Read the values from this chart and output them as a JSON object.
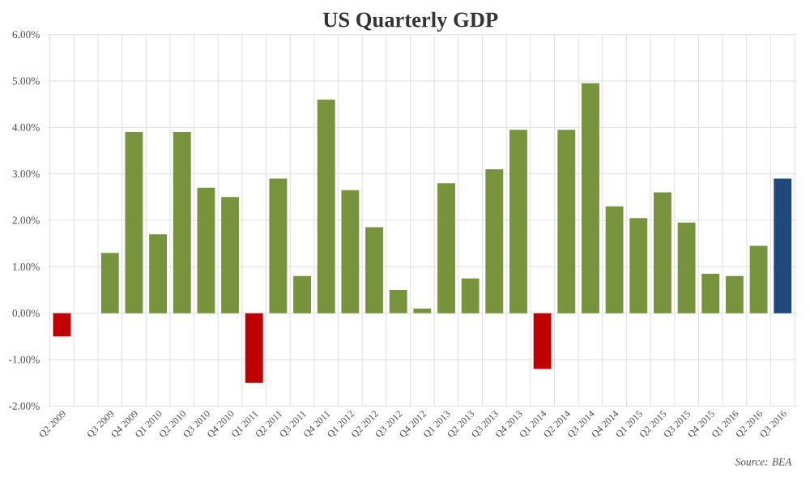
{
  "chart_data": {
    "type": "bar",
    "title": "US Quarterly GDP",
    "categories": [
      "Q2 2009",
      null,
      "Q3 2009",
      "Q4 2009",
      "Q1 2010",
      "Q2 2010",
      "Q3 2010",
      "Q4 2010",
      "Q1 2011",
      "Q2 2011",
      "Q3 2011",
      "Q4 2011",
      "Q1 2012",
      "Q2 2012",
      "Q3 2012",
      "Q4 2012",
      "Q1 2013",
      "Q2 2013",
      "Q3 2013",
      "Q4 2013",
      "Q1 2014",
      "Q2 2014",
      "Q3 2014",
      "Q4 2014",
      "Q1 2015",
      "Q2 2015",
      "Q3 2015",
      "Q4 2015",
      "Q1 2016",
      "Q2 2016",
      "Q3 2016"
    ],
    "values": [
      -0.5,
      null,
      1.3,
      3.9,
      1.7,
      3.9,
      2.7,
      2.5,
      -1.5,
      2.9,
      0.8,
      4.6,
      2.65,
      1.85,
      0.5,
      0.1,
      2.8,
      0.75,
      3.1,
      3.95,
      -1.2,
      3.95,
      4.95,
      2.3,
      2.05,
      2.6,
      1.95,
      0.85,
      0.8,
      1.45,
      2.9
    ],
    "colors": [
      "#c00000",
      "#77933c",
      "#77933c",
      "#77933c",
      "#77933c",
      "#77933c",
      "#77933c",
      "#77933c",
      "#c00000",
      "#77933c",
      "#77933c",
      "#77933c",
      "#77933c",
      "#77933c",
      "#77933c",
      "#77933c",
      "#77933c",
      "#77933c",
      "#77933c",
      "#77933c",
      "#c00000",
      "#77933c",
      "#77933c",
      "#77933c",
      "#77933c",
      "#77933c",
      "#77933c",
      "#77933c",
      "#77933c",
      "#77933c",
      "#1f497d"
    ],
    "ylim": [
      -2,
      6
    ],
    "yticks": [
      {
        "value": -2,
        "label": "-2.00%"
      },
      {
        "value": -1,
        "label": "-1.00%"
      },
      {
        "value": 0,
        "label": "0.00%"
      },
      {
        "value": 1,
        "label": "1.00%"
      },
      {
        "value": 2,
        "label": "2.00%"
      },
      {
        "value": 3,
        "label": "3.00%"
      },
      {
        "value": 4,
        "label": "4.00%"
      },
      {
        "value": 5,
        "label": "5.00%"
      },
      {
        "value": 6,
        "label": "6.00%"
      }
    ],
    "grid": true,
    "annotations": [
      "Source: BEA"
    ]
  }
}
